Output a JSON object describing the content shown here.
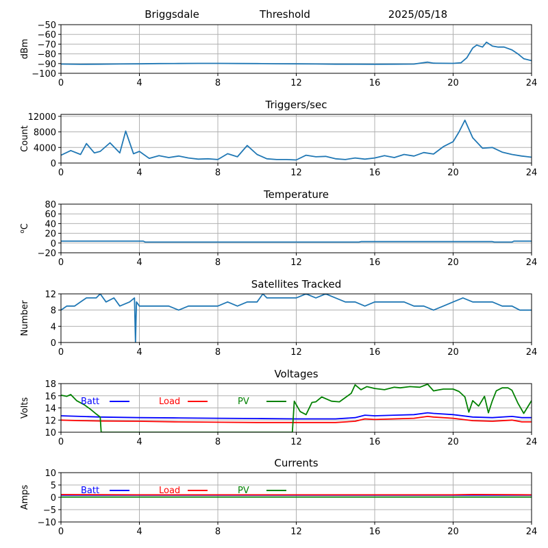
{
  "header": {
    "site": "Briggsdale",
    "mode": "Threshold",
    "date": "2025/05/18"
  },
  "chart_data": [
    {
      "type": "line",
      "title": "",
      "xlabel": "",
      "ylabel": "dBm",
      "xlim": [
        0,
        24
      ],
      "ylim": [
        -100,
        -50
      ],
      "xticks": [
        0,
        4,
        8,
        12,
        16,
        20,
        24
      ],
      "yticks": [
        -100,
        -90,
        -80,
        -70,
        -60,
        -50
      ],
      "grid": true,
      "series": [
        {
          "color": "#1f77b4",
          "x": [
            0,
            1,
            2,
            3,
            4,
            5,
            6,
            7,
            8,
            9,
            10,
            11,
            12,
            13,
            14,
            15,
            16,
            17,
            18,
            18.7,
            19,
            19.5,
            20,
            20.4,
            20.7,
            21,
            21.2,
            21.5,
            21.7,
            22,
            22.3,
            22.6,
            23,
            23.3,
            23.6,
            24
          ],
          "y": [
            -90.5,
            -90.8,
            -90.6,
            -90.4,
            -90.3,
            -90.0,
            -89.9,
            -89.8,
            -89.8,
            -89.9,
            -90.0,
            -90.2,
            -90.3,
            -90.4,
            -90.6,
            -90.6,
            -90.7,
            -90.6,
            -90.5,
            -88.5,
            -89.6,
            -89.7,
            -89.8,
            -89.2,
            -84,
            -74,
            -71,
            -73,
            -68,
            -72,
            -73,
            -73,
            -76,
            -80,
            -85,
            -87
          ]
        }
      ]
    },
    {
      "type": "line",
      "title": "Triggers/sec",
      "xlabel": "",
      "ylabel": "Count",
      "xlim": [
        0,
        24
      ],
      "ylim": [
        0,
        12500
      ],
      "xticks": [
        0,
        4,
        8,
        12,
        16,
        20,
        24
      ],
      "yticks": [
        0,
        4000,
        8000,
        12000
      ],
      "grid": true,
      "series": [
        {
          "color": "#1f77b4",
          "x": [
            0,
            0.5,
            1,
            1.3,
            1.7,
            2,
            2.5,
            3,
            3.3,
            3.7,
            4,
            4.5,
            5,
            5.5,
            6,
            6.5,
            7,
            7.5,
            8,
            8.5,
            9,
            9.5,
            10,
            10.5,
            11,
            11.5,
            12,
            12.5,
            13,
            13.5,
            14,
            14.5,
            15,
            15.5,
            16,
            16.5,
            17,
            17.5,
            18,
            18.5,
            19,
            19.5,
            20,
            20.3,
            20.6,
            21,
            21.5,
            22,
            22.5,
            23,
            23.5,
            24
          ],
          "y": [
            2000,
            3200,
            2200,
            5000,
            2600,
            3000,
            5200,
            2600,
            8200,
            2400,
            3000,
            1200,
            1900,
            1400,
            1800,
            1300,
            1000,
            1100,
            900,
            2400,
            1600,
            4500,
            2200,
            1100,
            900,
            900,
            800,
            2000,
            1600,
            1700,
            1100,
            900,
            1300,
            1000,
            1300,
            1900,
            1400,
            2200,
            1800,
            2700,
            2300,
            4200,
            5500,
            8000,
            11000,
            6500,
            3800,
            4000,
            2800,
            2200,
            1800,
            1500
          ]
        }
      ]
    },
    {
      "type": "line",
      "title": "Temperature",
      "xlabel": "",
      "ylabel": "oC",
      "xlim": [
        0,
        24
      ],
      "ylim": [
        -20,
        80
      ],
      "xticks": [
        0,
        4,
        8,
        12,
        16,
        20,
        24
      ],
      "yticks": [
        -20,
        0,
        20,
        40,
        60,
        80
      ],
      "grid": true,
      "series": [
        {
          "color": "#1f77b4",
          "x": [
            0,
            4.2,
            4.3,
            15.2,
            15.3,
            22,
            22.1,
            23,
            23.1,
            24
          ],
          "y": [
            4,
            4,
            2,
            2,
            3,
            3,
            2,
            2,
            4,
            4
          ]
        }
      ]
    },
    {
      "type": "line",
      "title": "Satellites Tracked",
      "xlabel": "",
      "ylabel": "Number",
      "xlim": [
        0,
        24
      ],
      "ylim": [
        0,
        12
      ],
      "xticks": [
        0,
        4,
        8,
        12,
        16,
        20,
        24
      ],
      "yticks": [
        0,
        4,
        8,
        12
      ],
      "grid": true,
      "series": [
        {
          "color": "#1f77b4",
          "x": [
            0,
            0.3,
            0.7,
            1,
            1.3,
            1.8,
            2,
            2.3,
            2.7,
            3,
            3.5,
            3.75,
            3.8,
            3.85,
            4,
            4.5,
            5,
            5.5,
            6,
            6.5,
            7,
            7.5,
            8,
            8.5,
            9,
            9.5,
            10,
            10.3,
            10.5,
            11,
            11.5,
            12,
            12.5,
            13,
            13.5,
            14,
            14.5,
            15,
            15.5,
            16,
            16.5,
            17,
            17.5,
            18,
            18.5,
            19,
            19.5,
            20,
            20.5,
            21,
            21.5,
            22,
            22.5,
            23,
            23.4,
            23.5,
            24
          ],
          "y": [
            8,
            9,
            9,
            10,
            11,
            11,
            12,
            10,
            11,
            9,
            10,
            11,
            0,
            10,
            9,
            9,
            9,
            9,
            8,
            9,
            9,
            9,
            9,
            10,
            9,
            10,
            10,
            12,
            11,
            11,
            11,
            11,
            12,
            11,
            12,
            11,
            10,
            10,
            9,
            10,
            10,
            10,
            10,
            9,
            9,
            8,
            9,
            10,
            11,
            10,
            10,
            10,
            9,
            9,
            8,
            8,
            8
          ]
        }
      ]
    },
    {
      "type": "line",
      "title": "Voltages",
      "xlabel": "",
      "ylabel": "Volts",
      "xlim": [
        0,
        24
      ],
      "ylim": [
        10,
        18
      ],
      "xticks": [
        0,
        4,
        8,
        12,
        16,
        20,
        24
      ],
      "yticks": [
        10,
        12,
        14,
        16,
        18
      ],
      "grid": true,
      "legend": "upper-left inside, horizontal",
      "series": [
        {
          "name": "Batt",
          "color": "#0000ff",
          "x": [
            0,
            1,
            2,
            4,
            6,
            8,
            10,
            12,
            14,
            15,
            15.5,
            16,
            17,
            18,
            18.7,
            19,
            20,
            21,
            22,
            23,
            23.5,
            24
          ],
          "y": [
            12.7,
            12.6,
            12.5,
            12.4,
            12.35,
            12.3,
            12.25,
            12.2,
            12.2,
            12.4,
            12.8,
            12.7,
            12.8,
            12.9,
            13.2,
            13.1,
            12.9,
            12.5,
            12.4,
            12.6,
            12.4,
            12.4
          ]
        },
        {
          "name": "Load",
          "color": "#ff0000",
          "x": [
            0,
            1,
            2,
            4,
            6,
            8,
            10,
            12,
            14,
            15,
            15.5,
            16,
            17,
            18,
            18.7,
            19,
            20,
            21,
            22,
            23,
            23.5,
            24
          ],
          "y": [
            12.0,
            11.9,
            11.85,
            11.8,
            11.7,
            11.65,
            11.6,
            11.6,
            11.6,
            11.8,
            12.2,
            12.1,
            12.2,
            12.3,
            12.6,
            12.5,
            12.3,
            11.9,
            11.8,
            12.0,
            11.7,
            11.7
          ]
        },
        {
          "name": "PV",
          "color": "#008000",
          "x": [
            0,
            0.3,
            0.5,
            0.8,
            1.2,
            1.5,
            1.8,
            2.0,
            2.05,
            11.8,
            11.9,
            12.2,
            12.5,
            12.8,
            13,
            13.3,
            13.8,
            14.2,
            14.8,
            15,
            15.3,
            15.6,
            16,
            16.5,
            17,
            17.3,
            17.8,
            18.3,
            18.7,
            19,
            19.5,
            20,
            20.3,
            20.6,
            20.8,
            21,
            21.3,
            21.6,
            21.8,
            22,
            22.2,
            22.5,
            22.8,
            23,
            23.3,
            23.6,
            24
          ],
          "y": [
            16.1,
            15.9,
            16.2,
            15.2,
            14.5,
            13.8,
            13.0,
            12.5,
            10,
            10,
            15.1,
            13.4,
            12.9,
            14.9,
            15.0,
            15.8,
            15.1,
            15.0,
            16.4,
            17.8,
            17.0,
            17.5,
            17.2,
            17.0,
            17.4,
            17.3,
            17.5,
            17.4,
            17.9,
            16.8,
            17.1,
            17.1,
            16.7,
            15.8,
            13.3,
            15.2,
            14.3,
            15.9,
            13.2,
            15.2,
            16.8,
            17.3,
            17.3,
            16.9,
            14.8,
            13.1,
            15.2
          ]
        }
      ]
    },
    {
      "type": "line",
      "title": "Currents",
      "xlabel": "",
      "ylabel": "Amps",
      "xlim": [
        0,
        24
      ],
      "ylim": [
        -10,
        10
      ],
      "xticks": [
        0,
        4,
        8,
        12,
        16,
        20,
        24
      ],
      "yticks": [
        -10,
        -5,
        0,
        5,
        10
      ],
      "grid": true,
      "legend": "upper-left inside, horizontal",
      "series": [
        {
          "name": "Batt",
          "color": "#0000ff",
          "x": [
            0,
            24
          ],
          "y": [
            0.9,
            0.9
          ]
        },
        {
          "name": "Load",
          "color": "#ff0000",
          "x": [
            0,
            4,
            8,
            12,
            16,
            20,
            21,
            24
          ],
          "y": [
            1.1,
            1.0,
            1.0,
            1.0,
            1.0,
            1.0,
            1.15,
            1.0
          ]
        },
        {
          "name": "PV",
          "color": "#008000",
          "x": [
            0,
            24
          ],
          "y": [
            0.1,
            0.1
          ]
        }
      ]
    }
  ]
}
